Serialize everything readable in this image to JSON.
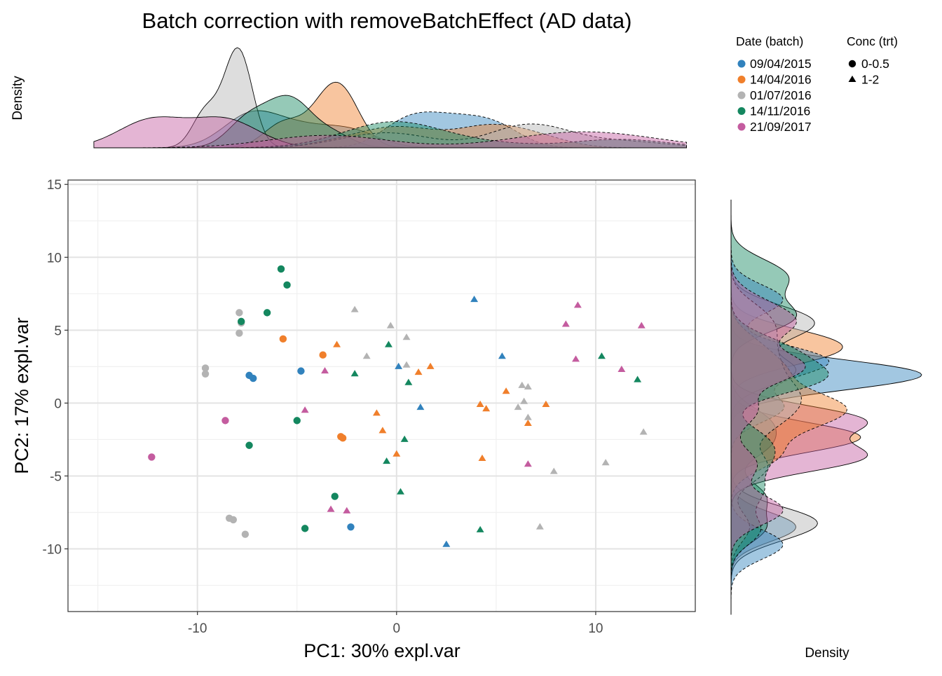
{
  "title": "Batch correction with removeBatchEffect (AD data)",
  "top_density_label": "Density",
  "right_density_label": "Density",
  "legend": {
    "batch_title": "Date (batch)",
    "batch_items": [
      {
        "label": "09/04/2015",
        "color": "#3182BD"
      },
      {
        "label": "14/04/2016",
        "color": "#F07F2B"
      },
      {
        "label": "01/07/2016",
        "color": "#B3B3B3"
      },
      {
        "label": "14/11/2016",
        "color": "#14875F"
      },
      {
        "label": "21/09/2017",
        "color": "#C45C9F"
      }
    ],
    "trt_title": "Conc (trt)",
    "trt_items": [
      {
        "label": "0-0.5",
        "shape": "circle"
      },
      {
        "label": "1-2",
        "shape": "triangle"
      }
    ]
  },
  "chart_data": {
    "type": "scatter",
    "title": "Batch correction with removeBatchEffect (AD data)",
    "xlabel": "PC1: 30% expl.var",
    "ylabel": "PC2: 17% expl.var",
    "xlim": [
      -16.5,
      15
    ],
    "ylim": [
      -14.3,
      15.3
    ],
    "xticks": [
      -10,
      0,
      10
    ],
    "yticks": [
      15,
      10,
      5,
      0,
      -5,
      -10
    ],
    "x_tick_labels": [
      "-10",
      "0",
      "10"
    ],
    "y_tick_labels": [
      "15",
      "10",
      "5",
      "0",
      "-5",
      "-10"
    ],
    "grid": true,
    "batches": [
      "09/04/2015",
      "14/04/2016",
      "01/07/2016",
      "14/11/2016",
      "21/09/2017"
    ],
    "points": [
      {
        "x": -7.4,
        "y": 1.9,
        "b": 0,
        "s": "circle"
      },
      {
        "x": -7.2,
        "y": 1.7,
        "b": 0,
        "s": "circle"
      },
      {
        "x": -4.8,
        "y": 2.2,
        "b": 0,
        "s": "circle"
      },
      {
        "x": -2.3,
        "y": -8.5,
        "b": 0,
        "s": "circle"
      },
      {
        "x": 3.9,
        "y": 7.1,
        "b": 0,
        "s": "triangle"
      },
      {
        "x": 5.3,
        "y": 3.2,
        "b": 0,
        "s": "triangle"
      },
      {
        "x": 0.1,
        "y": 2.5,
        "b": 0,
        "s": "triangle"
      },
      {
        "x": 1.2,
        "y": -0.3,
        "b": 0,
        "s": "triangle"
      },
      {
        "x": 2.5,
        "y": -9.7,
        "b": 0,
        "s": "triangle"
      },
      {
        "x": -5.7,
        "y": 4.4,
        "b": 1,
        "s": "circle"
      },
      {
        "x": -3.7,
        "y": 3.3,
        "b": 1,
        "s": "circle"
      },
      {
        "x": -2.8,
        "y": -2.3,
        "b": 1,
        "s": "circle"
      },
      {
        "x": -2.7,
        "y": -2.4,
        "b": 1,
        "s": "circle"
      },
      {
        "x": -3.0,
        "y": 4.0,
        "b": 1,
        "s": "triangle"
      },
      {
        "x": 1.1,
        "y": 2.1,
        "b": 1,
        "s": "triangle"
      },
      {
        "x": 1.7,
        "y": 2.5,
        "b": 1,
        "s": "triangle"
      },
      {
        "x": -1.0,
        "y": -0.7,
        "b": 1,
        "s": "triangle"
      },
      {
        "x": -0.7,
        "y": -1.9,
        "b": 1,
        "s": "triangle"
      },
      {
        "x": 0.0,
        "y": -3.5,
        "b": 1,
        "s": "triangle"
      },
      {
        "x": 4.2,
        "y": -0.1,
        "b": 1,
        "s": "triangle"
      },
      {
        "x": 4.5,
        "y": -0.4,
        "b": 1,
        "s": "triangle"
      },
      {
        "x": 5.5,
        "y": 0.8,
        "b": 1,
        "s": "triangle"
      },
      {
        "x": 6.6,
        "y": -1.4,
        "b": 1,
        "s": "triangle"
      },
      {
        "x": 7.5,
        "y": -0.1,
        "b": 1,
        "s": "triangle"
      },
      {
        "x": 4.3,
        "y": -3.8,
        "b": 1,
        "s": "triangle"
      },
      {
        "x": -7.9,
        "y": 6.2,
        "b": 2,
        "s": "circle"
      },
      {
        "x": -7.8,
        "y": 5.5,
        "b": 2,
        "s": "circle"
      },
      {
        "x": -7.9,
        "y": 4.8,
        "b": 2,
        "s": "circle"
      },
      {
        "x": -9.6,
        "y": 2.4,
        "b": 2,
        "s": "circle"
      },
      {
        "x": -9.6,
        "y": 2.0,
        "b": 2,
        "s": "circle"
      },
      {
        "x": -8.4,
        "y": -7.9,
        "b": 2,
        "s": "circle"
      },
      {
        "x": -8.2,
        "y": -8.0,
        "b": 2,
        "s": "circle"
      },
      {
        "x": -7.6,
        "y": -9.0,
        "b": 2,
        "s": "circle"
      },
      {
        "x": -2.1,
        "y": 6.4,
        "b": 2,
        "s": "triangle"
      },
      {
        "x": -0.3,
        "y": 5.3,
        "b": 2,
        "s": "triangle"
      },
      {
        "x": 0.5,
        "y": 4.5,
        "b": 2,
        "s": "triangle"
      },
      {
        "x": -1.5,
        "y": 3.2,
        "b": 2,
        "s": "triangle"
      },
      {
        "x": 0.5,
        "y": 2.6,
        "b": 2,
        "s": "triangle"
      },
      {
        "x": 6.3,
        "y": 1.2,
        "b": 2,
        "s": "triangle"
      },
      {
        "x": 6.6,
        "y": 1.1,
        "b": 2,
        "s": "triangle"
      },
      {
        "x": 6.4,
        "y": 0.1,
        "b": 2,
        "s": "triangle"
      },
      {
        "x": 6.1,
        "y": -0.3,
        "b": 2,
        "s": "triangle"
      },
      {
        "x": 6.6,
        "y": -1.0,
        "b": 2,
        "s": "triangle"
      },
      {
        "x": 12.4,
        "y": -2.0,
        "b": 2,
        "s": "triangle"
      },
      {
        "x": 10.5,
        "y": -4.1,
        "b": 2,
        "s": "triangle"
      },
      {
        "x": 7.9,
        "y": -4.7,
        "b": 2,
        "s": "triangle"
      },
      {
        "x": 7.2,
        "y": -8.5,
        "b": 2,
        "s": "triangle"
      },
      {
        "x": -5.8,
        "y": 9.2,
        "b": 3,
        "s": "circle"
      },
      {
        "x": -5.5,
        "y": 8.1,
        "b": 3,
        "s": "circle"
      },
      {
        "x": -6.5,
        "y": 6.2,
        "b": 3,
        "s": "circle"
      },
      {
        "x": -7.8,
        "y": 5.6,
        "b": 3,
        "s": "circle"
      },
      {
        "x": -5.0,
        "y": -1.2,
        "b": 3,
        "s": "circle"
      },
      {
        "x": -7.4,
        "y": -2.9,
        "b": 3,
        "s": "circle"
      },
      {
        "x": -3.1,
        "y": -6.4,
        "b": 3,
        "s": "circle"
      },
      {
        "x": -4.6,
        "y": -8.6,
        "b": 3,
        "s": "circle"
      },
      {
        "x": -0.4,
        "y": 4.0,
        "b": 3,
        "s": "triangle"
      },
      {
        "x": -2.1,
        "y": 2.0,
        "b": 3,
        "s": "triangle"
      },
      {
        "x": 0.6,
        "y": 1.4,
        "b": 3,
        "s": "triangle"
      },
      {
        "x": 0.4,
        "y": -2.5,
        "b": 3,
        "s": "triangle"
      },
      {
        "x": -0.5,
        "y": -4.0,
        "b": 3,
        "s": "triangle"
      },
      {
        "x": 0.2,
        "y": -6.1,
        "b": 3,
        "s": "triangle"
      },
      {
        "x": 4.2,
        "y": -8.7,
        "b": 3,
        "s": "triangle"
      },
      {
        "x": 10.3,
        "y": 3.2,
        "b": 3,
        "s": "triangle"
      },
      {
        "x": 12.1,
        "y": 1.6,
        "b": 3,
        "s": "triangle"
      },
      {
        "x": -8.6,
        "y": -1.2,
        "b": 4,
        "s": "circle"
      },
      {
        "x": -12.3,
        "y": -3.7,
        "b": 4,
        "s": "circle"
      },
      {
        "x": -3.6,
        "y": 2.2,
        "b": 4,
        "s": "triangle"
      },
      {
        "x": -4.6,
        "y": -0.5,
        "b": 4,
        "s": "triangle"
      },
      {
        "x": -3.3,
        "y": -7.3,
        "b": 4,
        "s": "triangle"
      },
      {
        "x": -2.5,
        "y": -7.4,
        "b": 4,
        "s": "triangle"
      },
      {
        "x": 9.1,
        "y": 6.7,
        "b": 4,
        "s": "triangle"
      },
      {
        "x": 8.5,
        "y": 5.4,
        "b": 4,
        "s": "triangle"
      },
      {
        "x": 12.3,
        "y": 5.3,
        "b": 4,
        "s": "triangle"
      },
      {
        "x": 9.0,
        "y": 3.0,
        "b": 4,
        "s": "triangle"
      },
      {
        "x": 11.3,
        "y": 2.3,
        "b": 4,
        "s": "triangle"
      },
      {
        "x": 6.6,
        "y": -4.2,
        "b": 4,
        "s": "triangle"
      }
    ]
  }
}
